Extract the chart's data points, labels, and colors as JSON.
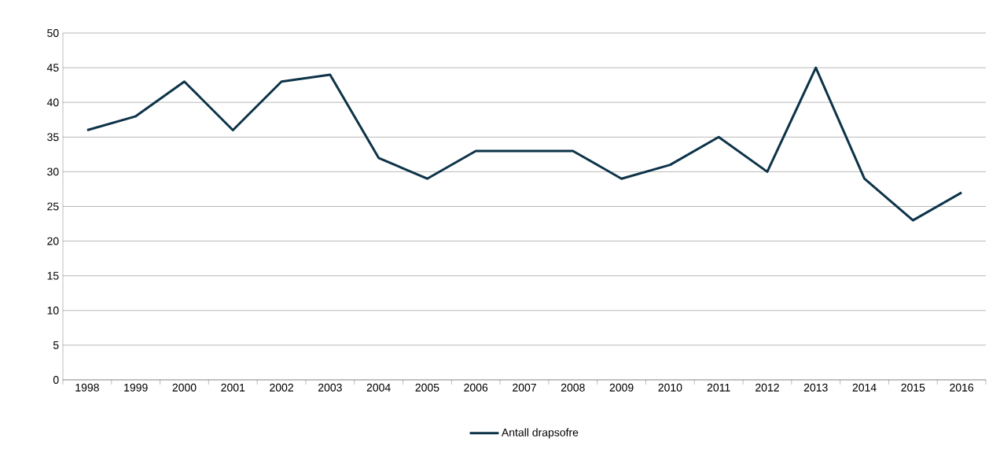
{
  "chart_data": {
    "type": "line",
    "categories": [
      "1998",
      "1999",
      "2000",
      "2001",
      "2002",
      "2003",
      "2004",
      "2005",
      "2006",
      "2007",
      "2008",
      "2009",
      "2010",
      "2011",
      "2012",
      "2013",
      "2014",
      "2015",
      "2016"
    ],
    "series": [
      {
        "name": "Antall drapsofre",
        "color": "#0d3349",
        "values": [
          36,
          38,
          43,
          36,
          43,
          44,
          32,
          29,
          33,
          33,
          33,
          29,
          31,
          35,
          30,
          45,
          29,
          23,
          27
        ]
      }
    ],
    "ylim": [
      0,
      50
    ],
    "yticks": [
      0,
      5,
      10,
      15,
      20,
      25,
      30,
      35,
      40,
      45,
      50
    ],
    "grid": "y",
    "legend": "bottom"
  }
}
